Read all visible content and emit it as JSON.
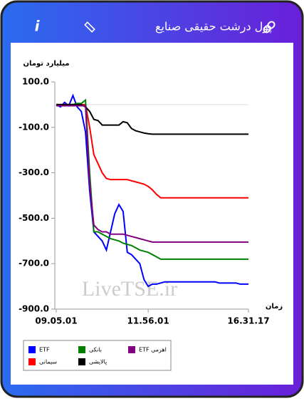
{
  "header": {
    "title": "پول درشت حقیقی صنایع",
    "info": "i"
  },
  "chart_data": {
    "type": "line",
    "ylabel": "میلیارد تومان",
    "xlabel": "زمان",
    "watermark": "LiveTSE.ir",
    "categories": [
      "09.05.01",
      null,
      null,
      null,
      null,
      null,
      null,
      null,
      null,
      null,
      null,
      null,
      null,
      null,
      null,
      null,
      null,
      null,
      null,
      null,
      null,
      null,
      "11.56.01",
      null,
      null,
      null,
      null,
      null,
      null,
      null,
      null,
      null,
      null,
      null,
      null,
      null,
      null,
      null,
      null,
      null,
      null,
      null,
      null,
      null,
      null,
      null,
      "16.31.17"
    ],
    "ylim": [
      -900,
      100
    ],
    "yticks": [
      {
        "value": 100,
        "label": "100.0"
      },
      {
        "value": -100,
        "label": "-100.0"
      },
      {
        "value": -300,
        "label": "-300.0"
      },
      {
        "value": -500,
        "label": "-500.0"
      },
      {
        "value": -700,
        "label": "-700.0"
      },
      {
        "value": -900,
        "label": "-900.0"
      }
    ],
    "zero_line": true,
    "series": [
      {
        "name": "ETF",
        "color": "#0000ff",
        "values": [
          0,
          -10,
          10,
          -5,
          40,
          -10,
          -30,
          -120,
          -380,
          -560,
          -580,
          -600,
          -640,
          -560,
          -480,
          -440,
          -470,
          -650,
          -660,
          -680,
          -700,
          -770,
          -800,
          -790,
          -790,
          -785,
          -780,
          -780,
          -780,
          -780,
          -780,
          -780,
          -780,
          -780,
          -780,
          -780,
          -780,
          -780,
          -780,
          -785,
          -785,
          -785,
          -785,
          -785,
          -790,
          -790,
          -790
        ]
      },
      {
        "name": "سیمانی",
        "color": "#ff0000",
        "values": [
          0,
          0,
          0,
          0,
          0,
          0,
          0,
          0,
          -100,
          -220,
          -260,
          -300,
          -325,
          -330,
          -330,
          -330,
          -330,
          -330,
          -335,
          -340,
          -345,
          -350,
          -360,
          -375,
          -395,
          -410,
          -410,
          -410,
          -410,
          -410,
          -410,
          -410,
          -410,
          -410,
          -410,
          -410,
          -410,
          -410,
          -410,
          -410,
          -410,
          -410,
          -410,
          -410,
          -410,
          -410,
          -410
        ]
      },
      {
        "name": "بانکی",
        "color": "#008000",
        "values": [
          0,
          0,
          0,
          0,
          0,
          5,
          5,
          20,
          -300,
          -560,
          -560,
          -570,
          -580,
          -590,
          -595,
          -600,
          -610,
          -615,
          -620,
          -630,
          -640,
          -645,
          -650,
          -660,
          -670,
          -680,
          -680,
          -680,
          -680,
          -680,
          -680,
          -680,
          -680,
          -680,
          -680,
          -680,
          -680,
          -680,
          -680,
          -680,
          -680,
          -680,
          -680,
          -680,
          -680,
          -680,
          -680
        ]
      },
      {
        "name": "پالایشی",
        "color": "#000000",
        "values": [
          0,
          0,
          0,
          0,
          0,
          0,
          0,
          -10,
          -30,
          -65,
          -70,
          -90,
          -90,
          -90,
          -90,
          -90,
          -75,
          -80,
          -105,
          -115,
          -120,
          -125,
          -128,
          -130,
          -130,
          -130,
          -130,
          -130,
          -130,
          -130,
          -130,
          -130,
          -130,
          -130,
          -130,
          -130,
          -130,
          -130,
          -130,
          -130,
          -130,
          -130,
          -130,
          -130,
          -130,
          -130,
          -130
        ]
      },
      {
        "name": "ETF اهرمی",
        "color": "#800080",
        "values": [
          -5,
          -5,
          -5,
          -5,
          -5,
          -5,
          -5,
          -5,
          -350,
          -530,
          -550,
          -560,
          -560,
          -570,
          -570,
          -570,
          -570,
          -575,
          -580,
          -585,
          -590,
          -595,
          -600,
          -605,
          -605,
          -605,
          -605,
          -605,
          -605,
          -605,
          -605,
          -605,
          -605,
          -605,
          -605,
          -605,
          -605,
          -605,
          -605,
          -605,
          -605,
          -605,
          -605,
          -605,
          -605,
          -605,
          -605
        ]
      }
    ]
  }
}
